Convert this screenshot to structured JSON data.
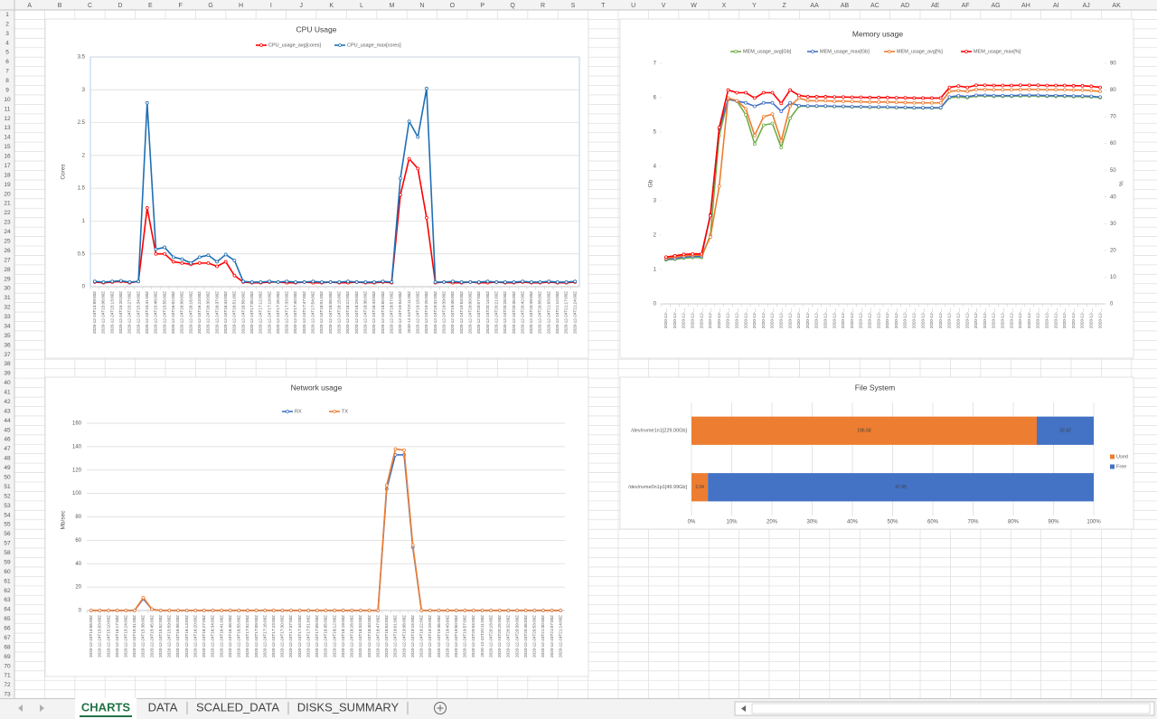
{
  "sheet": {
    "columns": [
      "A",
      "B",
      "C",
      "D",
      "E",
      "F",
      "G",
      "H",
      "I",
      "J",
      "K",
      "L",
      "M",
      "N",
      "O",
      "P",
      "Q",
      "R",
      "S",
      "T",
      "U",
      "V",
      "W",
      "X",
      "Y",
      "Z",
      "AA",
      "AB",
      "AC",
      "AD",
      "AE",
      "AF",
      "AG",
      "AH",
      "AI",
      "AJ",
      "AK"
    ],
    "rows": [
      1,
      2,
      3,
      4,
      5,
      6,
      7,
      8,
      9,
      10,
      11,
      12,
      13,
      14,
      15,
      16,
      17,
      18,
      19,
      20,
      21,
      22,
      23,
      24,
      25,
      26,
      27,
      28,
      29,
      30,
      31,
      32,
      33,
      34,
      35,
      36,
      37,
      38,
      39,
      40,
      41,
      42,
      43,
      44,
      45,
      46,
      47,
      48,
      49,
      50,
      51,
      52,
      53,
      54,
      55,
      56,
      57,
      58,
      59,
      60,
      61,
      62,
      63,
      64,
      65,
      66,
      67,
      68,
      69,
      70,
      71,
      72,
      73
    ],
    "tabs": [
      "CHARTS",
      "DATA",
      "SCALED_DATA",
      "DISKS_SUMMARY"
    ]
  },
  "chart_data": [
    {
      "type": "line",
      "title": "CPU Usage",
      "ylabel": "Cores",
      "grid": true,
      "legend": "top",
      "categories": [
        "2020-12-24T14:59:00Z",
        "2020-12-24T15:06:00Z",
        "2020-12-24T15:13:00Z",
        "2020-12-24T15:20:00Z",
        "2020-12-24T15:27:00Z",
        "2020-12-24T15:34:00Z",
        "2020-12-24T15:41:00Z",
        "2020-12-24T15:48:00Z",
        "2020-12-24T15:55:00Z",
        "2020-12-24T16:02:00Z",
        "2020-12-24T16:09:00Z",
        "2020-12-24T16:16:00Z",
        "2020-12-24T16:23:00Z",
        "2020-12-24T16:30:00Z",
        "2020-12-24T16:37:00Z",
        "2020-12-24T16:44:00Z",
        "2020-12-24T16:51:00Z",
        "2020-12-24T16:58:00Z",
        "2020-12-24T17:05:00Z",
        "2020-12-24T17:12:00Z",
        "2020-12-24T17:19:00Z",
        "2020-12-24T17:26:00Z",
        "2020-12-24T17:33:00Z",
        "2020-12-24T17:40:00Z",
        "2020-12-24T17:47:00Z",
        "2020-12-24T17:54:00Z",
        "2020-12-24T18:01:00Z",
        "2020-12-24T18:08:00Z",
        "2020-12-24T18:15:00Z",
        "2020-12-24T18:22:00Z",
        "2020-12-24T18:29:00Z",
        "2020-12-24T18:36:00Z",
        "2020-12-24T18:43:00Z",
        "2020-12-24T18:50:00Z",
        "2020-12-24T18:57:00Z",
        "2020-12-24T19:04:00Z",
        "2020-12-24T19:11:00Z",
        "2020-12-24T19:18:00Z",
        "2020-12-24T19:25:00Z",
        "2020-12-24T19:32:00Z",
        "2020-12-24T19:39:00Z",
        "2020-12-24T19:46:00Z",
        "2020-12-24T19:53:00Z",
        "2020-12-24T20:00:00Z",
        "2020-12-24T20:07:00Z",
        "2020-12-24T20:14:00Z",
        "2020-12-24T20:21:00Z",
        "2020-12-24T20:28:00Z",
        "2020-12-24T20:35:00Z",
        "2020-12-24T20:42:00Z",
        "2020-12-24T20:49:00Z",
        "2020-12-24T20:56:00Z",
        "2020-12-24T21:03:00Z",
        "2020-12-24T21:10:00Z",
        "2020-12-24T21:17:00Z",
        "2020-12-24T21:24:00Z"
      ],
      "series": [
        {
          "name": "CPU_usage_avg[cores]",
          "color": "#ff0000",
          "values": [
            0.07,
            0.06,
            0.07,
            0.08,
            0.06,
            0.08,
            1.2,
            0.5,
            0.5,
            0.38,
            0.36,
            0.34,
            0.36,
            0.36,
            0.31,
            0.38,
            0.17,
            0.07,
            0.06,
            0.06,
            0.07,
            0.07,
            0.06,
            0.06,
            0.07,
            0.06,
            0.06,
            0.07,
            0.06,
            0.06,
            0.07,
            0.06,
            0.06,
            0.07,
            0.06,
            1.4,
            1.95,
            1.8,
            1.05,
            0.06,
            0.07,
            0.06,
            0.06,
            0.07,
            0.06,
            0.06,
            0.07,
            0.06,
            0.06,
            0.07,
            0.06,
            0.06,
            0.07,
            0.06,
            0.06,
            0.07
          ]
        },
        {
          "name": "CPU_usage_max[cores]",
          "color": "#1f6fb4",
          "values": [
            0.08,
            0.07,
            0.08,
            0.09,
            0.07,
            0.08,
            2.8,
            0.57,
            0.6,
            0.45,
            0.42,
            0.36,
            0.45,
            0.48,
            0.38,
            0.49,
            0.4,
            0.08,
            0.07,
            0.07,
            0.08,
            0.07,
            0.08,
            0.07,
            0.07,
            0.08,
            0.07,
            0.07,
            0.07,
            0.08,
            0.07,
            0.07,
            0.07,
            0.08,
            0.07,
            1.65,
            2.52,
            2.28,
            3.02,
            0.07,
            0.07,
            0.08,
            0.07,
            0.07,
            0.07,
            0.08,
            0.07,
            0.07,
            0.07,
            0.08,
            0.07,
            0.07,
            0.08,
            0.07,
            0.07,
            0.08
          ]
        }
      ],
      "ylim": [
        0,
        3.5
      ],
      "yticks": [
        0,
        0.5,
        1,
        1.5,
        2,
        2.5,
        3,
        3.5
      ]
    },
    {
      "type": "line",
      "title": "Memory usage",
      "ylabel": "Gb",
      "y2label": "%",
      "grid": false,
      "legend": "top",
      "categories": [
        "2020-12-...",
        "2020-12-...",
        "2020-12-...",
        "2020-12-...",
        "2020-12-...",
        "2020-12-...",
        "2020-12-...",
        "2020-12-...",
        "2020-12-...",
        "2020-12-...",
        "2020-12-...",
        "2020-12-...",
        "2020-12-...",
        "2020-12-...",
        "2020-12-...",
        "2020-12-...",
        "2020-12-...",
        "2020-12-...",
        "2020-12-...",
        "2020-12-...",
        "2020-12-...",
        "2020-12-...",
        "2020-12-...",
        "2020-12-...",
        "2020-12-...",
        "2020-12-...",
        "2020-12-...",
        "2020-12-...",
        "2020-12-...",
        "2020-12-...",
        "2020-12-...",
        "2020-12-...",
        "2020-12-...",
        "2020-12-...",
        "2020-12-...",
        "2020-12-...",
        "2020-12-...",
        "2020-12-...",
        "2020-12-...",
        "2020-12-...",
        "2020-12-...",
        "2020-12-...",
        "2020-12-...",
        "2020-12-...",
        "2020-12-...",
        "2020-12-...",
        "2020-12-...",
        "2020-12-...",
        "2020-12-...",
        "2020-12-..."
      ],
      "series": [
        {
          "name": "MEM_usage_avg[Gb]",
          "color": "#70ad47",
          "values": [
            1.28,
            1.3,
            1.33,
            1.35,
            1.35,
            2.0,
            4.9,
            5.95,
            5.9,
            5.5,
            4.65,
            5.2,
            5.25,
            4.55,
            5.4,
            5.75,
            5.75,
            5.75,
            5.75,
            5.74,
            5.74,
            5.73,
            5.73,
            5.72,
            5.72,
            5.72,
            5.71,
            5.71,
            5.7,
            5.7,
            5.7,
            5.7,
            6.0,
            6.02,
            6.0,
            6.05,
            6.05,
            6.04,
            6.04,
            6.04,
            6.05,
            6.05,
            6.05,
            6.04,
            6.04,
            6.04,
            6.03,
            6.03,
            6.02,
            6.0
          ]
        },
        {
          "name": "MEM_usage_max[Gb]",
          "color": "#4472c4",
          "values": [
            1.3,
            1.32,
            1.36,
            1.38,
            1.38,
            2.6,
            5.1,
            5.95,
            5.9,
            5.85,
            5.75,
            5.85,
            5.85,
            5.6,
            5.85,
            5.77,
            5.76,
            5.76,
            5.76,
            5.75,
            5.75,
            5.74,
            5.74,
            5.73,
            5.73,
            5.73,
            5.72,
            5.72,
            5.71,
            5.71,
            5.71,
            5.71,
            6.02,
            6.06,
            6.03,
            6.07,
            6.07,
            6.06,
            6.06,
            6.06,
            6.07,
            6.07,
            6.07,
            6.06,
            6.06,
            6.06,
            6.05,
            6.05,
            6.04,
            6.02
          ]
        },
        {
          "name": "MEM_usage_avg[%]",
          "color": "#ed7d31",
          "axis": "y2",
          "values": [
            17,
            17.5,
            18,
            18.2,
            18.2,
            25,
            44,
            77,
            76,
            73,
            63,
            70,
            71,
            61,
            74,
            77,
            76,
            76,
            76,
            75.8,
            75.8,
            75.7,
            75.6,
            75.5,
            75.5,
            75.5,
            75.4,
            75.3,
            75.2,
            75.2,
            75.2,
            75.2,
            79.5,
            79.8,
            79.5,
            80.2,
            80.2,
            80.1,
            80.1,
            80.1,
            80.2,
            80.2,
            80.2,
            80.1,
            80.1,
            80.1,
            80,
            80,
            79.8,
            79.5
          ]
        },
        {
          "name": "MEM_usage_max[%]",
          "color": "#ff0000",
          "axis": "y2",
          "values": [
            17.5,
            18,
            18.5,
            18.7,
            18.7,
            33,
            66,
            80,
            79,
            79,
            77,
            79,
            79,
            75,
            80,
            78,
            77.5,
            77.5,
            77.5,
            77.4,
            77.4,
            77.3,
            77.3,
            77.2,
            77.2,
            77.2,
            77.1,
            77.1,
            77,
            77,
            77,
            77,
            81,
            81.5,
            81,
            81.8,
            81.8,
            81.7,
            81.7,
            81.7,
            81.8,
            81.8,
            81.8,
            81.7,
            81.7,
            81.7,
            81.6,
            81.6,
            81.4,
            81
          ]
        }
      ],
      "ylim": [
        0,
        7
      ],
      "yticks": [
        0,
        1,
        2,
        3,
        4,
        5,
        6,
        7
      ],
      "y2lim": [
        0,
        90
      ],
      "y2ticks": [
        0,
        10,
        20,
        30,
        40,
        50,
        60,
        70,
        80,
        90
      ]
    },
    {
      "type": "line",
      "title": "Network usage",
      "ylabel": "Mb/sec",
      "grid": true,
      "legend": "top",
      "categories": [
        "2020-12-24T14:56:00Z",
        "2020-12-24T15:03:00Z",
        "2020-12-24T15:10:00Z",
        "2020-12-24T15:17:00Z",
        "2020-12-24T15:24:00Z",
        "2020-12-24T15:31:00Z",
        "2020-12-24T15:38:00Z",
        "2020-12-24T15:45:00Z",
        "2020-12-24T15:52:00Z",
        "2020-12-24T15:59:00Z",
        "2020-12-24T16:06:00Z",
        "2020-12-24T16:13:00Z",
        "2020-12-24T16:20:00Z",
        "2020-12-24T16:27:00Z",
        "2020-12-24T16:34:00Z",
        "2020-12-24T16:41:00Z",
        "2020-12-24T16:48:00Z",
        "2020-12-24T16:55:00Z",
        "2020-12-24T17:02:00Z",
        "2020-12-24T17:09:00Z",
        "2020-12-24T17:16:00Z",
        "2020-12-24T17:23:00Z",
        "2020-12-24T17:30:00Z",
        "2020-12-24T17:37:00Z",
        "2020-12-24T17:44:00Z",
        "2020-12-24T17:51:00Z",
        "2020-12-24T17:58:00Z",
        "2020-12-24T18:05:00Z",
        "2020-12-24T18:12:00Z",
        "2020-12-24T18:19:00Z",
        "2020-12-24T18:26:00Z",
        "2020-12-24T18:33:00Z",
        "2020-12-24T18:40:00Z",
        "2020-12-24T18:47:00Z",
        "2020-12-24T18:54:00Z",
        "2020-12-24T19:01:00Z",
        "2020-12-24T19:08:00Z",
        "2020-12-24T19:15:00Z",
        "2020-12-24T19:22:00Z",
        "2020-12-24T19:29:00Z",
        "2020-12-24T19:36:00Z",
        "2020-12-24T19:43:00Z",
        "2020-12-24T19:50:00Z",
        "2020-12-24T19:57:00Z",
        "2020-12-24T20:04:00Z",
        "2020-12-24T20:11:00Z",
        "2020-12-24T20:18:00Z",
        "2020-12-24T20:25:00Z",
        "2020-12-24T20:32:00Z",
        "2020-12-24T20:39:00Z",
        "2020-12-24T20:46:00Z",
        "2020-12-24T20:53:00Z",
        "2020-12-24T21:00:00Z",
        "2020-12-24T21:07:00Z",
        "2020-12-24T21:14:00Z"
      ],
      "series": [
        {
          "name": "RX",
          "color": "#4472c4",
          "values": [
            0,
            0,
            0,
            0,
            0,
            0,
            10,
            1,
            0,
            0,
            0,
            0,
            0,
            0,
            0,
            0,
            0,
            0,
            0,
            0,
            0,
            0,
            0,
            0,
            0,
            0,
            0,
            0,
            0,
            0,
            0,
            0,
            0,
            0,
            104,
            133,
            133,
            54,
            0,
            0,
            0,
            0,
            0,
            0,
            0,
            0,
            0,
            0,
            0,
            0,
            0,
            0,
            0,
            0,
            0
          ]
        },
        {
          "name": "TX",
          "color": "#ed7d31",
          "values": [
            0,
            0,
            0,
            0,
            0,
            0,
            11,
            1,
            0,
            0,
            0,
            0,
            0,
            0,
            0,
            0,
            0,
            0,
            0,
            0,
            0,
            0,
            0,
            0,
            0,
            0,
            0,
            0,
            0,
            0,
            0,
            0,
            0,
            0,
            107,
            138,
            137,
            56,
            0,
            0,
            0,
            0,
            0,
            0,
            0,
            0,
            0,
            0,
            0,
            0,
            0,
            0,
            0,
            0,
            0
          ]
        }
      ],
      "ylim": [
        0,
        160
      ],
      "yticks": [
        0,
        20,
        40,
        60,
        80,
        100,
        120,
        140,
        160
      ]
    },
    {
      "type": "bar",
      "orientation": "horizontal",
      "stacked": "percent",
      "title": "File System",
      "grid": true,
      "legend": "right",
      "categories": [
        "/dev/nvme1n1[229.00Gb]",
        "/dev/nvme0n1p1[49.99Gb]"
      ],
      "series": [
        {
          "name": "Used",
          "color": "#ed7d31",
          "values": [
            196.58,
            2.04
          ]
        },
        {
          "name": "Free",
          "color": "#4472c4",
          "values": [
            32.42,
            47.95
          ]
        }
      ],
      "xlim": [
        0,
        100
      ],
      "xticks": [
        {
          "value": 0,
          "label": "0%"
        },
        {
          "value": 10,
          "label": "10%"
        },
        {
          "value": 20,
          "label": "20%"
        },
        {
          "value": 30,
          "label": "30%"
        },
        {
          "value": 40,
          "label": "40%"
        },
        {
          "value": 50,
          "label": "50%"
        },
        {
          "value": 60,
          "label": "60%"
        },
        {
          "value": 70,
          "label": "70%"
        },
        {
          "value": 80,
          "label": "80%"
        },
        {
          "value": 90,
          "label": "90%"
        },
        {
          "value": 100,
          "label": "100%"
        }
      ]
    }
  ]
}
